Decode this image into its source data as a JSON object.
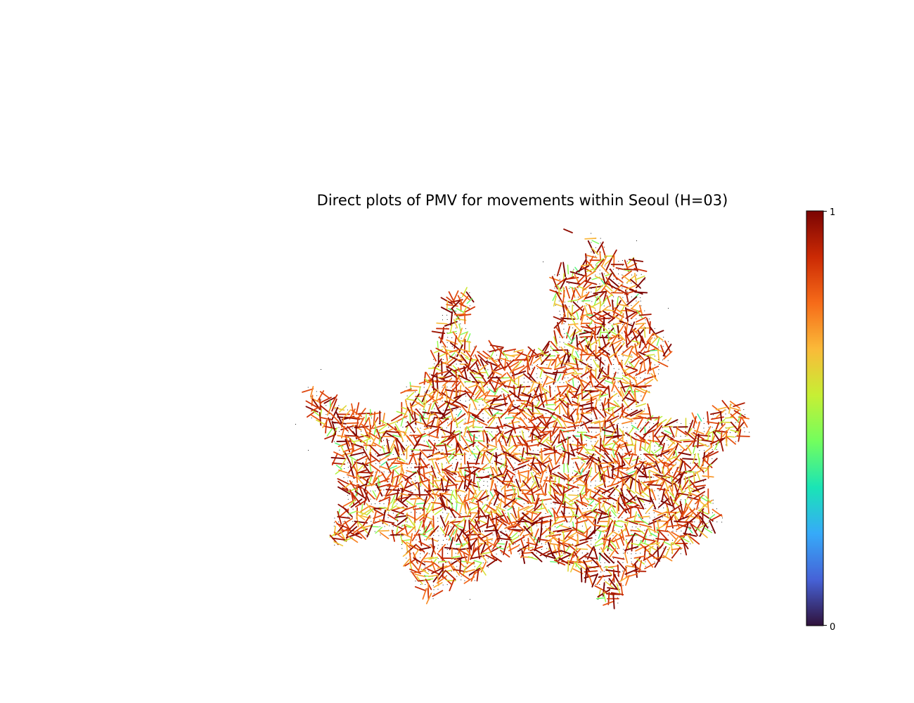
{
  "chart_data": {
    "type": "quiver",
    "title": "Direct plots of PMV for movements within Seoul (H=03)",
    "xlabel": "",
    "ylabel": "",
    "axes_visible": false,
    "grid": false,
    "colorbar": {
      "colormap": "turbo",
      "range": [
        0,
        1
      ],
      "ticks": [
        0,
        1
      ],
      "tick_labels": [
        "0",
        "1"
      ],
      "placement": "right"
    },
    "description_of_marks": "thousands of short arrows on a grid covering the city area, colored by normalized magnitude; tiny dark dots mark grid cells with no movement",
    "color_ramp": [
      "#30123b",
      "#4662d7",
      "#36aaf9",
      "#1ae4b6",
      "#72fe5e",
      "#c7ef34",
      "#faba39",
      "#f66b19",
      "#cb2a04",
      "#7a0403"
    ]
  }
}
